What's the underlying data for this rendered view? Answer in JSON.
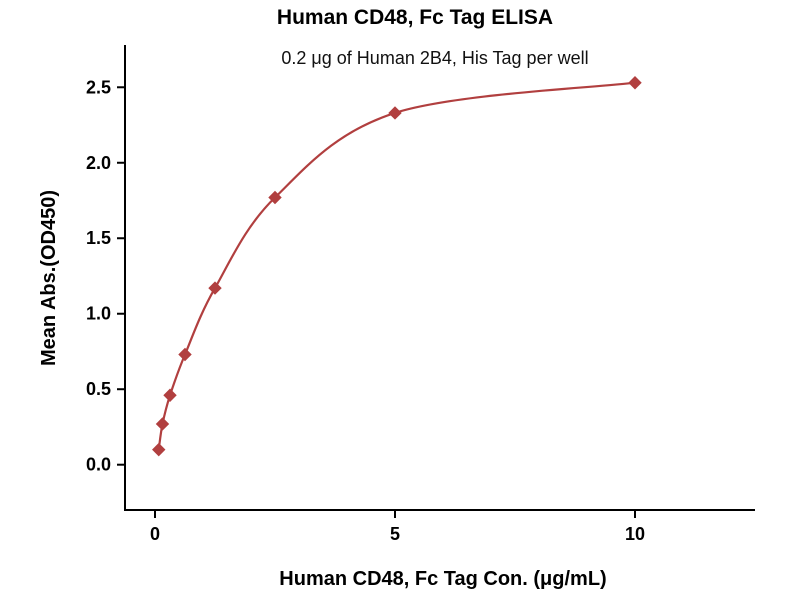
{
  "chart_data": {
    "type": "scatter",
    "title": "Human CD48, Fc Tag ELISA",
    "subtitle": "0.2 μg of Human 2B4, His Tag per well",
    "xlabel": "Human CD48, Fc Tag Con. (μg/mL)",
    "ylabel": "Mean Abs.(OD450)",
    "x": [
      0.078,
      0.156,
      0.313,
      0.625,
      1.25,
      2.5,
      5,
      10
    ],
    "y": [
      0.1,
      0.27,
      0.46,
      0.73,
      1.17,
      1.77,
      2.33,
      2.53
    ],
    "x_ticks": [
      0,
      5,
      10
    ],
    "x_tick_labels": [
      "0",
      "5",
      "10"
    ],
    "y_ticks": [
      0.0,
      0.5,
      1.0,
      1.5,
      2.0,
      2.5
    ],
    "y_tick_labels": [
      "0.0",
      "0.5",
      "1.0",
      "1.5",
      "2.0",
      "2.5"
    ],
    "xlim": [
      -0.625,
      12.5
    ],
    "ylim": [
      -0.3,
      2.78
    ],
    "marker": "diamond",
    "grid": false,
    "legend": "none",
    "colors": {
      "curve": "#b13f3f",
      "marker": "#b13f3f",
      "axis": "#000000",
      "title": "#1a1a4d"
    }
  }
}
